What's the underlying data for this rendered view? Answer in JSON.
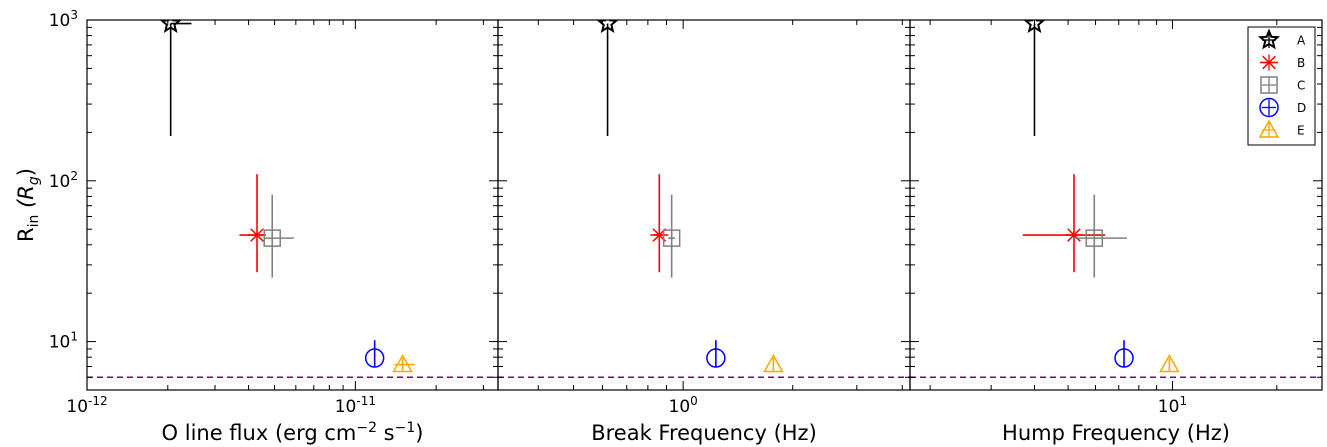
{
  "ylabel": "R_in (R_g)",
  "legend": {
    "placement": "top-right",
    "items": [
      {
        "key": "A",
        "marker": "star",
        "color": "#000000"
      },
      {
        "key": "B",
        "marker": "x",
        "color": "#ff0000"
      },
      {
        "key": "C",
        "marker": "square",
        "color": "#808080"
      },
      {
        "key": "D",
        "marker": "circle",
        "color": "#0000ff"
      },
      {
        "key": "E",
        "marker": "triangle",
        "color": "#ffa500"
      }
    ]
  },
  "chart_data": [
    {
      "type": "scatter",
      "xlabel": "O line flux (erg cm^-2 s^-1)",
      "xscale": "log",
      "yscale": "log",
      "xlim": [
        1e-12,
        3.4e-11
      ],
      "ylim": [
        5,
        1000
      ],
      "x_ticks": [
        {
          "v": 1e-12,
          "base": "10",
          "exp": "-12"
        },
        {
          "v": 1e-11,
          "base": "10",
          "exp": "-11"
        }
      ],
      "reference_line": {
        "y": 6,
        "style": "dashed",
        "color": "#800080"
      },
      "points": [
        {
          "key": "A",
          "x": 2.05e-12,
          "y": 950,
          "xerr": [
            2.05e-12,
            2.45e-12
          ],
          "yerr": [
            190,
            950
          ]
        },
        {
          "key": "B",
          "x": 4.3e-12,
          "y": 46,
          "xerr": [
            3.7e-12,
            4.6e-12
          ],
          "yerr": [
            27,
            110
          ]
        },
        {
          "key": "C",
          "x": 4.9e-12,
          "y": 44,
          "xerr": [
            4.55e-12,
            5.9e-12
          ],
          "yerr": [
            25,
            82
          ]
        },
        {
          "key": "D",
          "x": 1.18e-11,
          "y": 7.9,
          "xerr": [
            1.18e-11,
            1.18e-11
          ],
          "yerr": [
            7,
            10.2
          ]
        },
        {
          "key": "E",
          "x": 1.5e-11,
          "y": 7.2,
          "xerr": [
            1.4e-11,
            1.66e-11
          ],
          "yerr": [
            6.6,
            7.9
          ]
        }
      ]
    },
    {
      "type": "scatter",
      "xlabel": "Break Frequency (Hz)",
      "xscale": "log",
      "yscale": "log",
      "xlim": [
        0.31,
        4.2
      ],
      "ylim": [
        5,
        1000
      ],
      "x_ticks": [
        {
          "v": 1,
          "base": "10",
          "exp": "0"
        }
      ],
      "reference_line": {
        "y": 6,
        "style": "dashed",
        "color": "#800080"
      },
      "points": [
        {
          "key": "A",
          "x": 0.62,
          "y": 950,
          "xerr": [
            0.62,
            0.62
          ],
          "yerr": [
            190,
            950
          ]
        },
        {
          "key": "B",
          "x": 0.86,
          "y": 46,
          "xerr": [
            0.83,
            0.89
          ],
          "yerr": [
            27,
            110
          ]
        },
        {
          "key": "C",
          "x": 0.93,
          "y": 44,
          "xerr": [
            0.91,
            0.95
          ],
          "yerr": [
            25,
            82
          ]
        },
        {
          "key": "D",
          "x": 1.23,
          "y": 7.9,
          "xerr": [
            1.23,
            1.23
          ],
          "yerr": [
            7,
            10.2
          ]
        },
        {
          "key": "E",
          "x": 1.77,
          "y": 7.2,
          "xerr": [
            1.77,
            1.77
          ],
          "yerr": [
            6.6,
            7.9
          ]
        }
      ]
    },
    {
      "type": "scatter",
      "xlabel": "Hump Frequency (Hz)",
      "xscale": "log",
      "yscale": "log",
      "xlim": [
        1.75,
        27
      ],
      "ylim": [
        5,
        1000
      ],
      "x_ticks": [
        {
          "v": 10,
          "base": "10",
          "exp": "1"
        }
      ],
      "reference_line": {
        "y": 6,
        "style": "dashed",
        "color": "#800080"
      },
      "points": [
        {
          "key": "A",
          "x": 4.0,
          "y": 950,
          "xerr": [
            4.0,
            4.0
          ],
          "yerr": [
            190,
            950
          ]
        },
        {
          "key": "B",
          "x": 5.2,
          "y": 46,
          "xerr": [
            3.7,
            6.4
          ],
          "yerr": [
            27,
            110
          ]
        },
        {
          "key": "C",
          "x": 5.95,
          "y": 44,
          "xerr": [
            5.2,
            7.4
          ],
          "yerr": [
            25,
            82
          ]
        },
        {
          "key": "D",
          "x": 7.25,
          "y": 7.9,
          "xerr": [
            7.25,
            7.25
          ],
          "yerr": [
            7,
            10.2
          ]
        },
        {
          "key": "E",
          "x": 9.8,
          "y": 7.2,
          "xerr": [
            9.8,
            9.8
          ],
          "yerr": [
            6.6,
            7.9
          ]
        }
      ]
    }
  ]
}
